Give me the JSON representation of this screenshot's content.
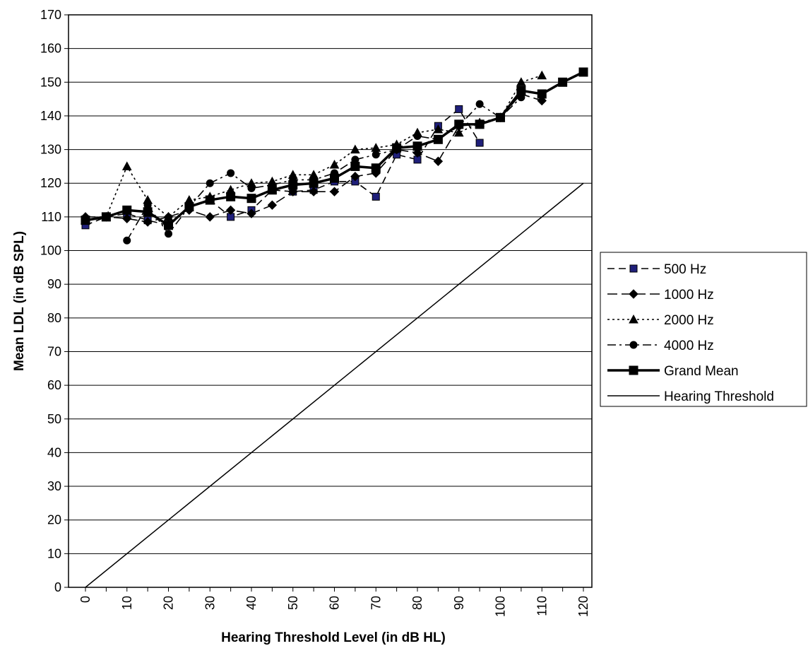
{
  "chart_data": {
    "type": "line",
    "title": "",
    "xlabel": "Hearing Threshold Level (in dB HL)",
    "ylabel": "Mean LDL (in dB SPL)",
    "xlim": [
      0,
      120
    ],
    "ylim": [
      0,
      170
    ],
    "xticks": [
      "0",
      "10",
      "20",
      "30",
      "40",
      "50",
      "60",
      "70",
      "80",
      "90",
      "100",
      "110",
      "120"
    ],
    "yticks": [
      "0",
      "10",
      "20",
      "30",
      "40",
      "50",
      "60",
      "70",
      "80",
      "90",
      "100",
      "110",
      "120",
      "130",
      "140",
      "150",
      "160",
      "170"
    ],
    "grid": "horizontal",
    "legend_position": "right",
    "series": [
      {
        "name": "500 Hz",
        "style": "dashed",
        "marker": "square",
        "marker_color": "#1f1f7a",
        "x": [
          0,
          5,
          10,
          15,
          20,
          25,
          30,
          35,
          40,
          45,
          50,
          55,
          60,
          65,
          70,
          75,
          80,
          85,
          90,
          95
        ],
        "y": [
          107.5,
          110,
          111,
          109,
          107.5,
          113,
          115,
          110,
          112,
          118,
          117.5,
          118,
          120.5,
          120.5,
          116,
          128.5,
          127,
          137,
          142,
          132
        ]
      },
      {
        "name": "1000 Hz",
        "style": "long-dash",
        "marker": "diamond",
        "marker_color": "#000000",
        "x": [
          0,
          5,
          10,
          15,
          20,
          25,
          30,
          35,
          40,
          45,
          50,
          55,
          60,
          65,
          70,
          75,
          80,
          85,
          90,
          95,
          100,
          105,
          110
        ],
        "y": [
          110,
          110,
          109.5,
          108.5,
          110,
          112,
          110,
          112,
          111,
          113.5,
          117.5,
          117.5,
          117.5,
          122,
          123,
          130,
          129,
          126.5,
          137,
          137.5,
          139.5,
          146.5,
          144.5
        ]
      },
      {
        "name": "2000 Hz",
        "style": "dotted",
        "marker": "triangle",
        "marker_color": "#000000",
        "x": [
          0,
          5,
          10,
          15,
          20,
          25,
          30,
          35,
          40,
          45,
          50,
          55,
          60,
          65,
          70,
          75,
          80,
          85,
          90,
          95,
          100,
          105,
          110
        ],
        "y": [
          109,
          110,
          125,
          115,
          110,
          115,
          116,
          118,
          120,
          120.5,
          122.5,
          122.5,
          125.5,
          130,
          130.5,
          131.5,
          135,
          136,
          135,
          138,
          139.5,
          150,
          152
        ]
      },
      {
        "name": "4000 Hz",
        "style": "dash-dot",
        "marker": "circle",
        "marker_color": "#000000",
        "x": [
          10,
          15,
          20,
          25,
          30,
          35,
          40,
          45,
          50,
          55,
          60,
          65,
          70,
          75,
          80,
          85,
          90,
          95,
          100,
          105
        ],
        "y": [
          103,
          113.5,
          105,
          113,
          120,
          123,
          118.5,
          119.5,
          121,
          121,
          123,
          127,
          128.5,
          130,
          134,
          133,
          137,
          143.5,
          139.5,
          145.5
        ]
      },
      {
        "name": "Grand Mean",
        "style": "solid-thick",
        "marker": "square",
        "marker_color": "#000000",
        "x": [
          0,
          5,
          10,
          15,
          20,
          25,
          30,
          35,
          40,
          45,
          50,
          55,
          60,
          65,
          70,
          75,
          80,
          85,
          90,
          95,
          100,
          105,
          110,
          115,
          120
        ],
        "y": [
          109,
          110,
          112,
          111.5,
          107.5,
          113,
          115,
          116,
          115.5,
          118,
          119.5,
          120,
          121.5,
          125,
          124.5,
          130.5,
          131,
          133,
          137.5,
          137.5,
          139.5,
          147.5,
          146.5,
          150,
          153
        ]
      },
      {
        "name": "Hearing Threshold",
        "style": "solid-thin",
        "marker": "none",
        "marker_color": "#000000",
        "x": [
          0,
          120
        ],
        "y": [
          0,
          120
        ]
      }
    ]
  }
}
